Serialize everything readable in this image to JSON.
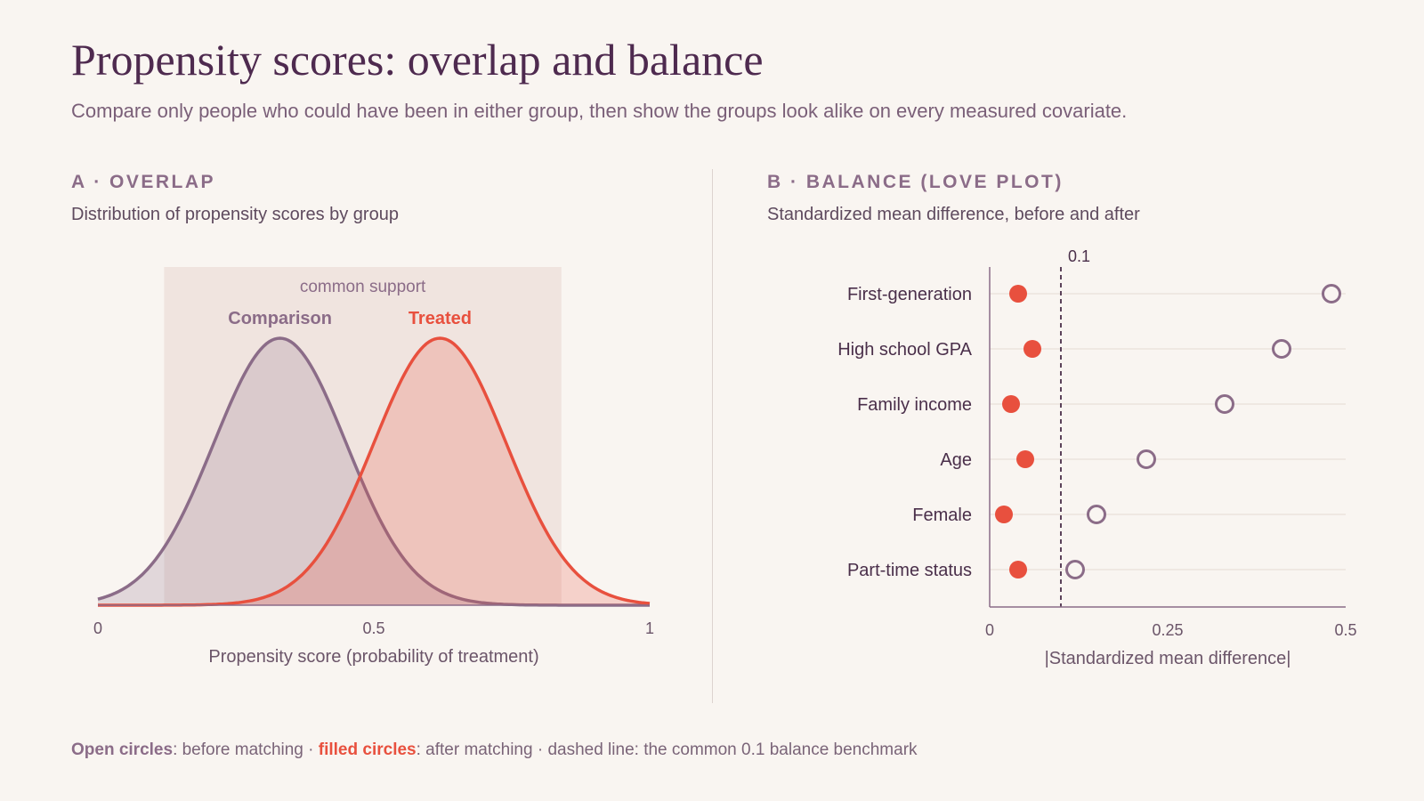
{
  "title": "Propensity scores: overlap and balance",
  "subtitle": "Compare only people who could have been in either group, then show the groups look alike on every measured covariate.",
  "colors": {
    "comparison": "#8b6c88",
    "treated": "#e8503e",
    "support": "#f0e4df"
  },
  "panel_a": {
    "label": "A · OVERLAP",
    "description": "Distribution of propensity scores by group"
  },
  "panel_b": {
    "label": "B · BALANCE (LOVE PLOT)",
    "description": "Standardized mean difference, before and after"
  },
  "footer": {
    "open_label": "Open circles",
    "open_text": ": before matching · ",
    "filled_label": "filled circles",
    "filled_text": ": after matching · dashed line: the common 0.1 balance benchmark"
  },
  "chart_data": [
    {
      "type": "area",
      "title": "A · OVERLAP",
      "xlabel": "Propensity score (probability of treatment)",
      "ylabel": "",
      "xlim": [
        0,
        1
      ],
      "x_ticks": [
        "0",
        "0.5",
        "1"
      ],
      "common_support": {
        "label": "common support",
        "range": [
          0.12,
          0.84
        ]
      },
      "series": [
        {
          "name": "Comparison",
          "distribution": "normal",
          "mean": 0.33,
          "sd": 0.12
        },
        {
          "name": "Treated",
          "distribution": "normal",
          "mean": 0.62,
          "sd": 0.12
        }
      ],
      "grid": false
    },
    {
      "type": "scatter",
      "title": "B · BALANCE (LOVE PLOT)",
      "xlabel": "|Standardized mean difference|",
      "ylabel": "",
      "xlim": [
        0,
        0.5
      ],
      "x_ticks": [
        "0",
        "0.25",
        "0.5"
      ],
      "reference_line": {
        "value": 0.1,
        "label": "0.1"
      },
      "categories": [
        "First-generation",
        "High school GPA",
        "Family income",
        "Age",
        "Female",
        "Part-time status"
      ],
      "series": [
        {
          "name": "before matching",
          "marker": "open",
          "values": [
            0.48,
            0.41,
            0.33,
            0.22,
            0.15,
            0.12
          ]
        },
        {
          "name": "after matching",
          "marker": "filled",
          "values": [
            0.04,
            0.06,
            0.03,
            0.05,
            0.02,
            0.04
          ]
        }
      ],
      "grid": true
    }
  ]
}
